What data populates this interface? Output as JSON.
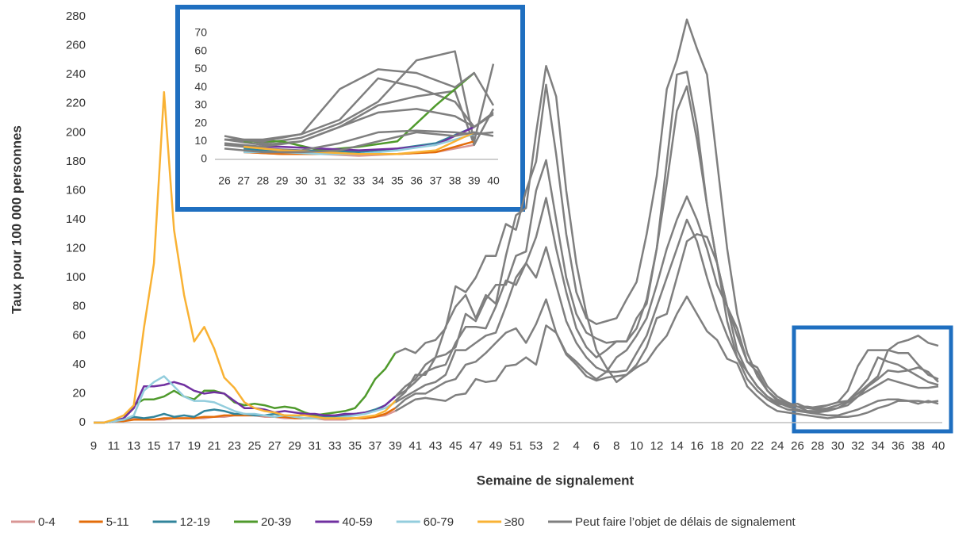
{
  "chart_data": {
    "type": "line",
    "y_label": "Taux pour 100 000 personnes",
    "x_label": "Semaine de signalement",
    "categories": [
      9,
      null,
      11,
      null,
      13,
      null,
      15,
      null,
      17,
      null,
      19,
      null,
      21,
      null,
      23,
      null,
      25,
      null,
      27,
      null,
      29,
      null,
      31,
      null,
      33,
      null,
      35,
      null,
      37,
      null,
      39,
      null,
      41,
      null,
      43,
      null,
      45,
      null,
      47,
      null,
      49,
      null,
      51,
      null,
      53,
      null,
      2,
      null,
      4,
      null,
      6,
      null,
      8,
      null,
      10,
      null,
      12,
      null,
      14,
      null,
      16,
      null,
      18,
      null,
      20,
      null,
      22,
      null,
      24,
      null,
      26,
      null,
      28,
      null,
      30,
      null,
      32,
      null,
      34,
      null,
      36,
      null,
      38,
      null,
      40
    ],
    "ylim": [
      0,
      280
    ],
    "yticks": [
      0,
      20,
      40,
      60,
      80,
      100,
      120,
      140,
      160,
      180,
      200,
      220,
      240,
      260,
      280
    ],
    "series": [
      {
        "name": "0-4",
        "color": "#d99694",
        "values": [
          0,
          0,
          1,
          2,
          3,
          2,
          2,
          2,
          3,
          3,
          3,
          3,
          4,
          4,
          5,
          5,
          5,
          4,
          4,
          3,
          3,
          3,
          3,
          2,
          2,
          2,
          3,
          3,
          4,
          5,
          8,
          12,
          16,
          17,
          16,
          15,
          19,
          20,
          30,
          28,
          29,
          39,
          40,
          45,
          40,
          67,
          62,
          47,
          40,
          32,
          29,
          31,
          32,
          33,
          40,
          52,
          72,
          75,
          100,
          125,
          130,
          128,
          110,
          80,
          60,
          42,
          38,
          25,
          18,
          14,
          11,
          8,
          8,
          9,
          10,
          12,
          18,
          25,
          30,
          36,
          35,
          36,
          38,
          35,
          28
        ]
      },
      {
        "name": "5-11",
        "color": "#e36c0a",
        "values": [
          0,
          0,
          1,
          1,
          2,
          2,
          2,
          3,
          3,
          3,
          3,
          4,
          4,
          5,
          5,
          5,
          5,
          5,
          4,
          4,
          3,
          3,
          3,
          3,
          3,
          3,
          3,
          3,
          4,
          6,
          10,
          16,
          20,
          20,
          24,
          28,
          30,
          40,
          42,
          48,
          55,
          62,
          65,
          55,
          68,
          85,
          62,
          48,
          42,
          35,
          30,
          35,
          45,
          50,
          60,
          72,
          95,
          120,
          140,
          156,
          140,
          120,
          95,
          80,
          65,
          42,
          35,
          22,
          15,
          12,
          13,
          10,
          9,
          10,
          12,
          15,
          20,
          26,
          32,
          50,
          55,
          57,
          60,
          55,
          53
        ]
      },
      {
        "name": "12-19",
        "color": "#31849b",
        "values": [
          0,
          0,
          1,
          2,
          4,
          3,
          4,
          6,
          4,
          5,
          4,
          8,
          9,
          8,
          6,
          6,
          5,
          5,
          6,
          5,
          4,
          6,
          5,
          4,
          4,
          5,
          6,
          7,
          9,
          12,
          18,
          22,
          28,
          35,
          38,
          40,
          55,
          66,
          66,
          65,
          80,
          98,
          95,
          110,
          128,
          155,
          120,
          90,
          65,
          52,
          45,
          50,
          56,
          56,
          72,
          82,
          120,
          165,
          215,
          232,
          195,
          150,
          110,
          80,
          50,
          35,
          25,
          18,
          13,
          12,
          11,
          10,
          11,
          12,
          14,
          15,
          22,
          30,
          45,
          42,
          40,
          36,
          32,
          28,
          26
        ]
      },
      {
        "name": "20-39",
        "color": "#4f9a2c",
        "values": [
          0,
          0,
          1,
          3,
          12,
          16,
          16,
          18,
          22,
          18,
          16,
          22,
          22,
          20,
          14,
          12,
          13,
          12,
          10,
          11,
          10,
          7,
          5,
          6,
          7,
          8,
          10,
          18,
          30,
          37,
          48,
          51,
          48,
          55,
          57,
          65,
          94,
          90,
          100,
          115,
          115,
          137,
          133,
          160,
          180,
          233,
          185,
          130,
          90,
          72,
          68,
          70,
          72,
          85,
          97,
          130,
          170,
          230,
          250,
          278,
          258,
          240,
          180,
          120,
          75,
          48,
          32,
          22,
          16,
          13,
          11,
          11,
          10,
          12,
          14,
          22,
          39,
          50,
          50,
          50,
          48,
          48,
          40,
          33,
          30
        ]
      },
      {
        "name": "40-59",
        "color": "#7030a0",
        "values": [
          0,
          0,
          1,
          3,
          10,
          25,
          25,
          26,
          28,
          26,
          22,
          20,
          21,
          20,
          15,
          10,
          10,
          9,
          7,
          8,
          7,
          6,
          6,
          5,
          5,
          6,
          6,
          7,
          8,
          12,
          18,
          25,
          30,
          40,
          45,
          47,
          52,
          75,
          70,
          85,
          95,
          95,
          115,
          118,
          160,
          181,
          140,
          100,
          75,
          62,
          58,
          55,
          56,
          56,
          65,
          85,
          120,
          180,
          240,
          242,
          205,
          150,
          110,
          70,
          45,
          35,
          25,
          18,
          14,
          11,
          9,
          7,
          7,
          8,
          10,
          14,
          18,
          22,
          26,
          30,
          28,
          26,
          24,
          24,
          25
        ]
      },
      {
        "name": "60-79",
        "color": "#93cddd",
        "values": [
          0,
          0,
          1,
          2,
          5,
          22,
          28,
          32,
          25,
          18,
          15,
          15,
          14,
          11,
          8,
          6,
          6,
          5,
          4,
          5,
          4,
          3,
          3,
          3,
          3,
          4,
          5,
          6,
          8,
          10,
          14,
          18,
          22,
          26,
          28,
          33,
          50,
          50,
          55,
          60,
          62,
          80,
          100,
          110,
          100,
          121,
          95,
          70,
          55,
          45,
          38,
          35,
          35,
          36,
          48,
          60,
          80,
          100,
          120,
          140,
          125,
          100,
          78,
          60,
          45,
          30,
          22,
          16,
          12,
          9,
          8,
          7,
          6,
          5,
          5,
          7,
          9,
          12,
          15,
          16,
          16,
          15,
          15,
          14,
          15
        ]
      },
      {
        "name": "≥80",
        "color": "#f9b234",
        "values": [
          0,
          0,
          2,
          5,
          12,
          65,
          110,
          228,
          133,
          88,
          56,
          66,
          51,
          31,
          24,
          14,
          10,
          8,
          7,
          5,
          5,
          5,
          4,
          3,
          3,
          3,
          3,
          4,
          5,
          8,
          15,
          21,
          33,
          33,
          45,
          66,
          80,
          88,
          72,
          88,
          82,
          115,
          143,
          148,
          200,
          246,
          225,
          160,
          110,
          75,
          50,
          38,
          28,
          33,
          38,
          42,
          52,
          60,
          75,
          87,
          75,
          63,
          57,
          44,
          41,
          25,
          18,
          12,
          8,
          7,
          6,
          5,
          4,
          3,
          4,
          4,
          5,
          7,
          10,
          12,
          15,
          15,
          13,
          15,
          13
        ]
      }
    ],
    "delay": {
      "name": "Peut faire l’objet de délais de signalement",
      "color": "#7f7f7f",
      "from": 39
    },
    "inset": {
      "categories": [
        26,
        27,
        28,
        29,
        30,
        31,
        32,
        33,
        34,
        35,
        36,
        37,
        38,
        39,
        40
      ],
      "ylim": [
        0,
        70
      ],
      "yticks": [
        0,
        10,
        20,
        30,
        40,
        50,
        60,
        70
      ]
    }
  }
}
